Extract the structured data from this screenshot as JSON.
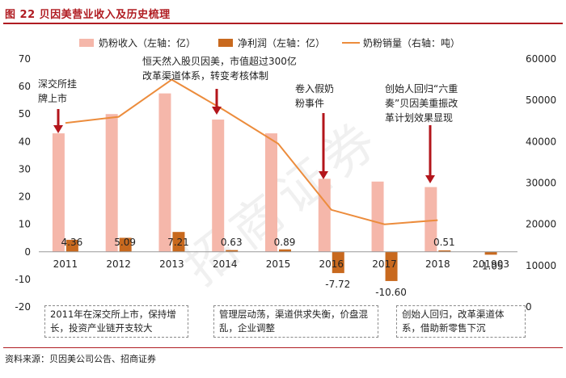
{
  "header": {
    "title": "图 22 贝因美营业收入及历史梳理"
  },
  "source": "资料来源：贝因美公司公告、招商证券",
  "watermark": "招商证券",
  "colors": {
    "revenue": "#f5b7aa",
    "profit": "#c8691e",
    "volume": "#ec8c3c",
    "arrow": "#b3151b",
    "title": "#b01c22"
  },
  "notes": [
    {
      "text": "2011年在深交所上市，保持增长，投资产业链开支较大"
    },
    {
      "text": "管理层动荡，渠道供求失衡，价盘混乱，企业调整"
    },
    {
      "text": "创始人回归，改革渠道体系，借助新零售下沉"
    }
  ],
  "chart_data": {
    "type": "bar",
    "categories": [
      "2011",
      "2012",
      "2013",
      "2014",
      "2015",
      "2016",
      "2017",
      "2018",
      "201903"
    ],
    "series": [
      {
        "name": "奶粉收入（左轴：亿）",
        "kind": "bar",
        "axis": "left",
        "values": [
          43,
          50,
          57.5,
          48,
          43,
          26.5,
          25.5,
          23.5,
          null
        ]
      },
      {
        "name": "净利润（左轴：亿）",
        "kind": "bar",
        "axis": "left",
        "values": [
          4.36,
          5.09,
          7.21,
          0.63,
          0.89,
          -7.72,
          -10.6,
          0.51,
          -1.05
        ]
      },
      {
        "name": "奶粉销量（右轴：吨）",
        "kind": "line",
        "axis": "right",
        "values": [
          44500,
          46000,
          55000,
          47500,
          39500,
          23500,
          20000,
          21000,
          null
        ]
      }
    ],
    "profit_labels": [
      "4.36",
      "5.09",
      "7.21",
      "0.63",
      "0.89",
      "-7.72",
      "-10.60",
      "0.51",
      "-1.05"
    ],
    "left_axis": {
      "min": -20,
      "max": 70,
      "ticks": [
        -20,
        -10,
        0,
        10,
        20,
        30,
        40,
        50,
        60,
        70
      ]
    },
    "right_axis": {
      "min": 0,
      "max": 60000,
      "ticks": [
        0,
        10000,
        20000,
        30000,
        40000,
        50000,
        60000
      ]
    },
    "legend": {
      "placement": "top"
    },
    "grid": false,
    "annotations": [
      {
        "category": "2011",
        "lines": [
          "深交所挂",
          "牌上市"
        ]
      },
      {
        "category": "2014",
        "lines": [
          "恒天然入股贝因美，市值超过300亿",
          "改革渠道体系，转变考核体制"
        ]
      },
      {
        "category": "2016",
        "lines": [
          "卷入假奶",
          "粉事件"
        ]
      },
      {
        "category": "2018",
        "lines": [
          "创始人回归“六重",
          "奏”贝因美重振改",
          "革计划效果显现"
        ]
      }
    ]
  }
}
